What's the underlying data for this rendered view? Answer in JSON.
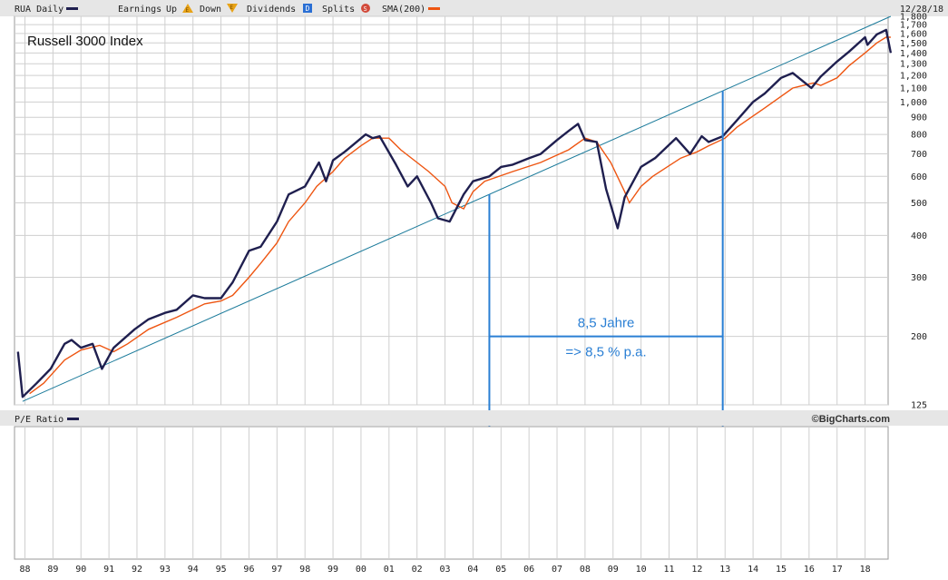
{
  "header": {
    "symbol_label": "RUA Daily",
    "earnings_label": "Earnings",
    "up_label": "Up",
    "down_label": "Down",
    "dividends_label": "Dividends",
    "splits_label": "Splits",
    "sma_label": "SMA(200)",
    "date_label": "12/28/18",
    "earnings_up_glyph": "E",
    "earnings_down_glyph": "E",
    "dividends_glyph": "D",
    "splits_glyph": "S"
  },
  "pe_panel": {
    "label": "P/E Ratio",
    "credit": "©BigCharts.com"
  },
  "colors": {
    "price": "#1f1f4f",
    "sma": "#ee5511",
    "trendline": "#1a7a9a",
    "annotation": "#2a7fd4",
    "grid": "#cfcfcf",
    "bar_bg": "#e6e6e6"
  },
  "chart_data": {
    "type": "line",
    "title": "Russell 3000 Index",
    "y_scale": "log",
    "ylim": [
      125,
      1800
    ],
    "y_ticks": [
      "1,800",
      "1,700",
      "1,600",
      "1,500",
      "1,400",
      "1,300",
      "1,200",
      "1,100",
      "1,000",
      "900",
      "800",
      "700",
      "600",
      "500",
      "400",
      "300",
      "200",
      "125"
    ],
    "x_ticks": [
      "88",
      "89",
      "90",
      "91",
      "92",
      "93",
      "94",
      "95",
      "96",
      "97",
      "98",
      "99",
      "00",
      "01",
      "02",
      "03",
      "04",
      "05",
      "06",
      "07",
      "08",
      "09",
      "10",
      "11",
      "12",
      "13",
      "14",
      "15",
      "16",
      "17",
      "18"
    ],
    "series": [
      {
        "key": "price",
        "x": [
          "1987-10",
          "1987-12",
          "1988-06",
          "1988-12",
          "1989-06",
          "1989-09",
          "1990-01",
          "1990-06",
          "1990-10",
          "1991-03",
          "1991-12",
          "1992-06",
          "1993-01",
          "1993-06",
          "1994-01",
          "1994-06",
          "1995-01",
          "1995-06",
          "1996-01",
          "1996-06",
          "1997-01",
          "1997-06",
          "1998-01",
          "1998-07",
          "1998-10",
          "1999-01",
          "1999-06",
          "2000-03",
          "2000-06",
          "2000-09",
          "2001-04",
          "2001-09",
          "2002-01",
          "2002-07",
          "2002-10",
          "2003-03",
          "2003-09",
          "2004-01",
          "2004-08",
          "2005-01",
          "2005-06",
          "2006-01",
          "2006-06",
          "2007-01",
          "2007-06",
          "2007-10",
          "2008-01",
          "2008-06",
          "2008-10",
          "2009-03",
          "2009-06",
          "2010-01",
          "2010-07",
          "2011-04",
          "2011-10",
          "2012-03",
          "2012-06",
          "2012-12",
          "2013-06",
          "2014-01",
          "2014-06",
          "2015-01",
          "2015-06",
          "2016-02",
          "2016-06",
          "2017-01",
          "2017-06",
          "2018-01",
          "2018-02",
          "2018-06",
          "2018-10",
          "2018-12"
        ],
        "values": [
          180,
          132,
          145,
          160,
          190,
          195,
          185,
          190,
          160,
          185,
          210,
          225,
          235,
          240,
          265,
          260,
          260,
          290,
          360,
          370,
          440,
          530,
          560,
          660,
          580,
          670,
          710,
          800,
          780,
          790,
          650,
          560,
          600,
          500,
          450,
          440,
          530,
          580,
          600,
          640,
          650,
          680,
          700,
          770,
          820,
          860,
          770,
          760,
          550,
          420,
          520,
          640,
          680,
          780,
          700,
          790,
          760,
          790,
          880,
          1000,
          1060,
          1180,
          1220,
          1100,
          1190,
          1320,
          1410,
          1560,
          1480,
          1590,
          1640,
          1400
        ]
      },
      {
        "key": "sma",
        "name": "SMA(200)",
        "x": [
          "1988-03",
          "1988-09",
          "1989-06",
          "1990-01",
          "1990-09",
          "1991-03",
          "1991-09",
          "1992-06",
          "1993-06",
          "1994-06",
          "1995-01",
          "1995-06",
          "1996-01",
          "1996-06",
          "1997-01",
          "1997-06",
          "1998-01",
          "1998-06",
          "1999-01",
          "1999-06",
          "2000-01",
          "2000-06",
          "2001-01",
          "2001-06",
          "2002-01",
          "2002-06",
          "2003-01",
          "2003-04",
          "2003-09",
          "2004-01",
          "2004-06",
          "2005-06",
          "2006-06",
          "2007-06",
          "2008-01",
          "2008-06",
          "2008-12",
          "2009-06",
          "2009-08",
          "2010-01",
          "2010-06",
          "2011-06",
          "2012-01",
          "2012-06",
          "2013-01",
          "2013-06",
          "2014-06",
          "2015-06",
          "2016-03",
          "2016-06",
          "2017-01",
          "2017-06",
          "2018-01",
          "2018-06",
          "2018-10",
          "2018-12"
        ],
        "values": [
          135,
          145,
          170,
          182,
          188,
          180,
          190,
          210,
          228,
          250,
          255,
          265,
          300,
          330,
          380,
          440,
          500,
          560,
          620,
          680,
          740,
          780,
          780,
          720,
          660,
          620,
          560,
          500,
          480,
          540,
          580,
          620,
          660,
          720,
          780,
          760,
          660,
          540,
          500,
          560,
          600,
          680,
          710,
          740,
          780,
          840,
          960,
          1100,
          1140,
          1120,
          1180,
          1280,
          1400,
          1500,
          1560,
          1560
        ]
      },
      {
        "key": "trendline",
        "x": [
          "1987-12",
          "2018-12"
        ],
        "values": [
          128,
          1800
        ]
      }
    ],
    "annotations": {
      "span_start": "2004-08",
      "span_end": "2012-12",
      "span_label": "8,5 Jahre",
      "rate_label": "=> 8,5 % p.a.",
      "span_y_value": 200
    }
  }
}
